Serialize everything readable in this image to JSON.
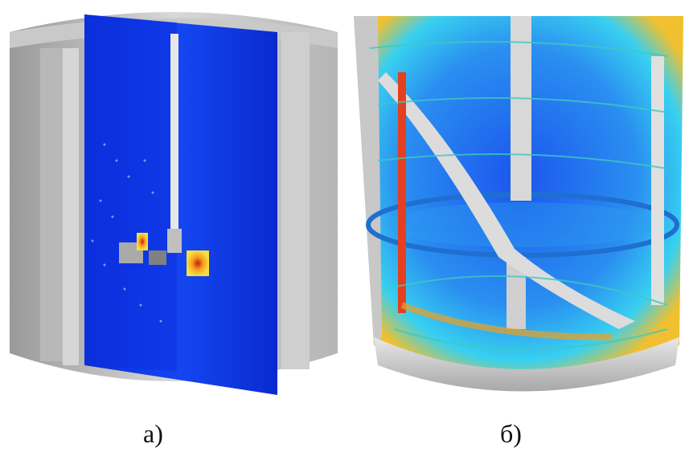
{
  "panels": [
    {
      "label": "а)"
    },
    {
      "label": "б)"
    }
  ]
}
